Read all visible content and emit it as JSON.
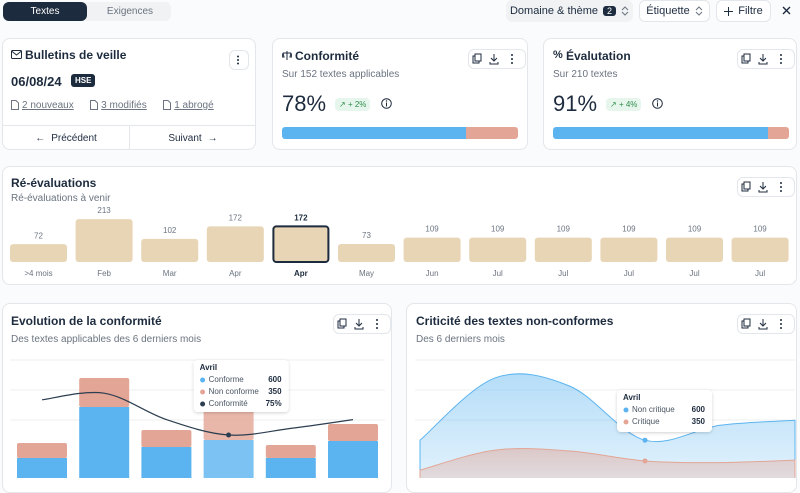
{
  "tabs": {
    "items": [
      "Textes",
      "Exigences"
    ],
    "active": 0
  },
  "toolbar": {
    "domain": "Domaine & thème",
    "domain_count": 2,
    "label": "Étiquette",
    "filter": "Filtre"
  },
  "bulletins": {
    "title": "Bulletins de veille",
    "date": "06/08/24",
    "tag": "HSE",
    "links": [
      "2 nouveaux",
      "3 modifiés",
      "1 abrogé"
    ],
    "previous": "Précédent",
    "next": "Suivant"
  },
  "progress_colors": [
    "#5bb4f0",
    "#e3a595"
  ],
  "kpis": [
    {
      "title": "Conformité",
      "subtitle": "Sur 152 textes applicables",
      "value": 78,
      "value_label": "78%",
      "trend": "+ 2%"
    },
    {
      "title": "Évalutation",
      "subtitle": "Sur 210 textes",
      "value": 91,
      "value_label": "91%",
      "trend": "+ 4%"
    }
  ],
  "reevaluations": {
    "type": "bar",
    "title": "Ré-évaluations",
    "subtitle": "Ré-évaluations à venir",
    "categories": [
      ">4 mois",
      "Feb",
      "Mar",
      "Apr",
      "Apr",
      "May",
      "Jun",
      "Jul",
      "Jul",
      "Jul",
      "Jul",
      "Jul"
    ],
    "values": [
      72,
      213,
      102,
      172,
      172,
      73,
      109,
      109,
      109,
      109,
      109,
      109
    ],
    "selected": 4,
    "color": "#e8d5b5"
  },
  "evolution": {
    "type": "stacked-bar-line",
    "title": "Evolution de la conformité",
    "subtitle": "Des textes applicables des 6 derniers mois",
    "series": [
      {
        "name": "Conforme",
        "color": "#5bb4f0",
        "values": [
          420,
          930,
          530,
          600,
          420,
          590
        ]
      },
      {
        "name": "Non conforme",
        "color": "#e3a595",
        "values": [
          150,
          290,
          170,
          350,
          130,
          170
        ]
      },
      {
        "name": "Conformité",
        "color": "#2c3e50",
        "values": [
          91,
          94,
          82,
          75,
          78,
          82
        ],
        "value_labels": [
          null,
          null,
          null,
          "75%",
          null,
          null
        ]
      }
    ],
    "tooltip": {
      "title": "Avril",
      "index": 3
    }
  },
  "criticite": {
    "type": "area",
    "title": "Criticité des textes non-conformes",
    "subtitle": "Des 6 derniers mois",
    "series": [
      {
        "name": "Non critique",
        "color": "#5bb4f0",
        "values": [
          600,
          1350,
          1250,
          600,
          780,
          840
        ]
      },
      {
        "name": "Critique",
        "color": "#e3a595",
        "values": [
          240,
          480,
          470,
          350,
          330,
          360
        ]
      }
    ],
    "tooltip": {
      "title": "Avril",
      "index": 3
    }
  }
}
